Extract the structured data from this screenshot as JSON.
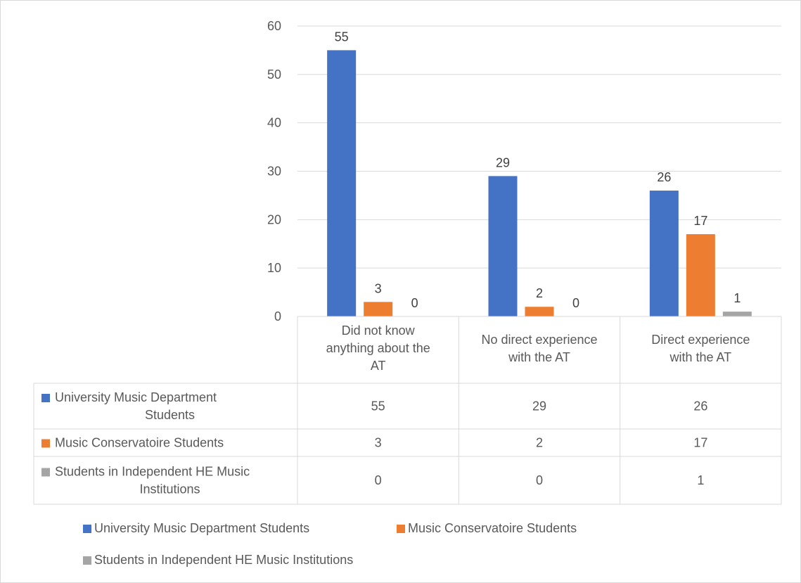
{
  "chart_data": {
    "type": "bar",
    "title": "",
    "xlabel": "",
    "ylabel": "",
    "ylim": [
      0,
      60
    ],
    "yticks": [
      0,
      10,
      20,
      30,
      40,
      50,
      60
    ],
    "grid": true,
    "legend_position": "bottom",
    "categories": [
      [
        "Did not know",
        "anything about the",
        "AT"
      ],
      [
        "No direct experience",
        "with the AT"
      ],
      [
        "Direct experience",
        "with the AT"
      ]
    ],
    "series": [
      {
        "name": "University Music Department Students",
        "name_lines": [
          "University Music Department",
          "Students"
        ],
        "color": "#4472c4",
        "values": [
          55,
          29,
          26
        ]
      },
      {
        "name": "Music Conservatoire Students",
        "name_lines": [
          "Music Conservatoire Students"
        ],
        "color": "#ed7d31",
        "values": [
          3,
          2,
          17
        ]
      },
      {
        "name": "Students in Independent HE Music Institutions",
        "name_lines": [
          "Students in Independent HE Music",
          "Institutions"
        ],
        "color": "#a5a5a5",
        "values": [
          0,
          0,
          1
        ]
      }
    ],
    "data_table": true
  }
}
